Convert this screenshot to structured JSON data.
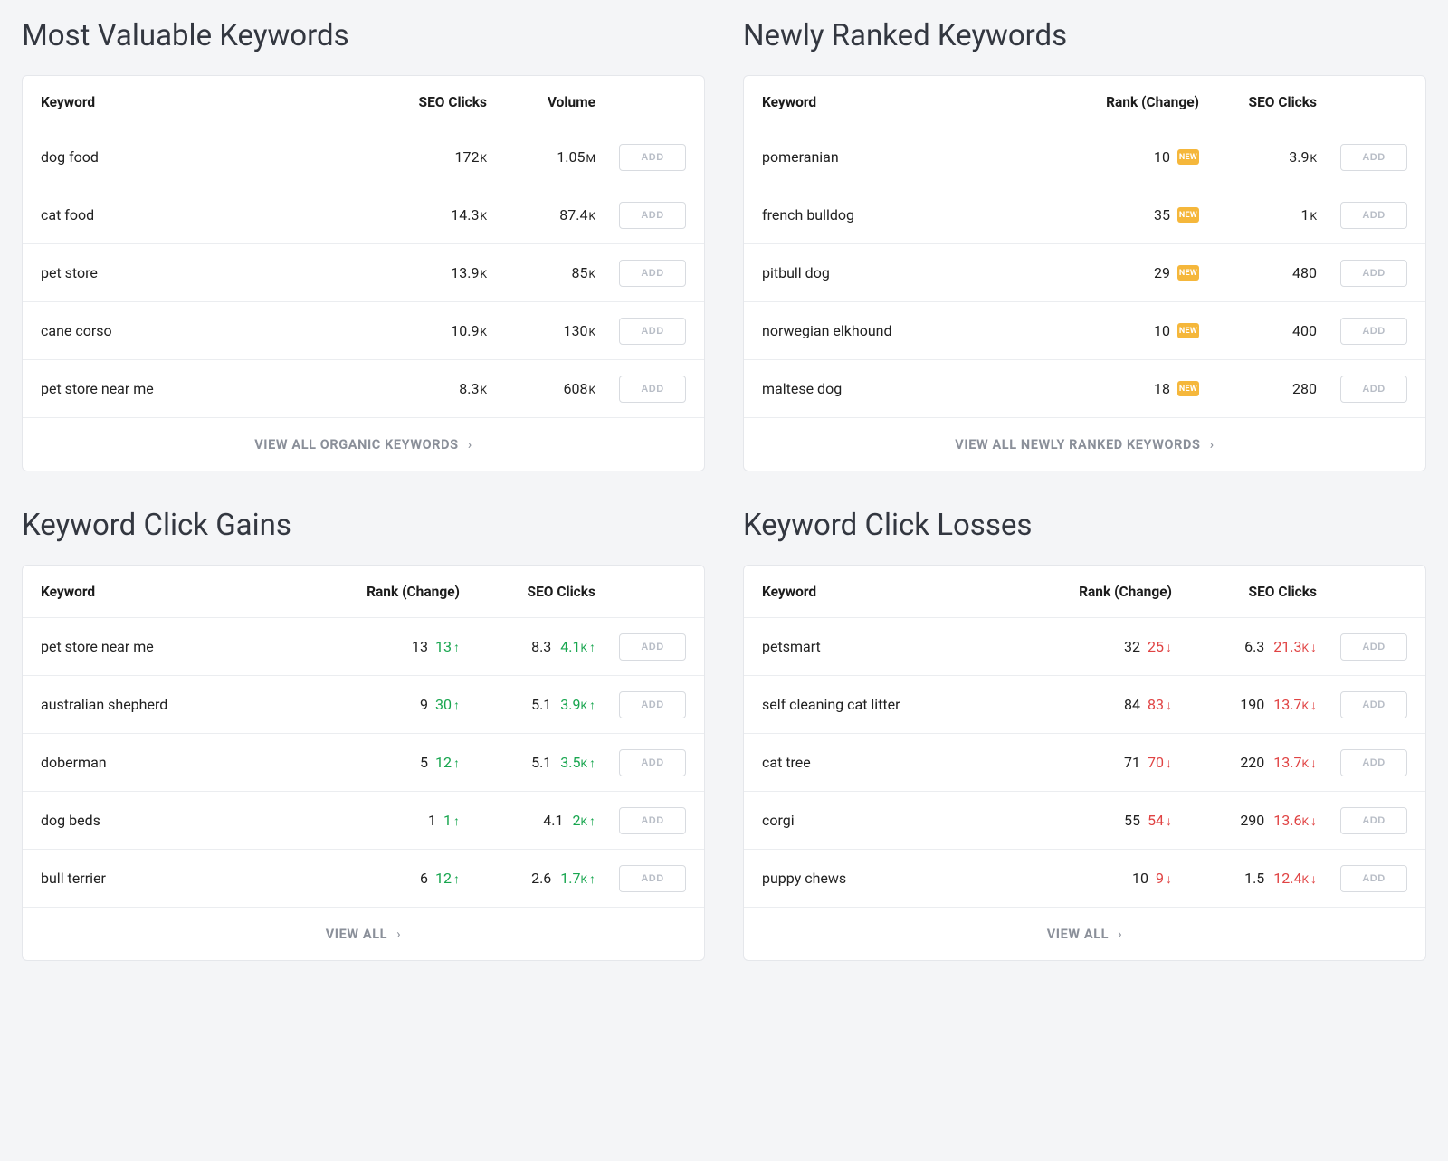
{
  "labels": {
    "add_button": "ADD",
    "new_badge": "NEW"
  },
  "colors": {
    "background": "#f4f5f7",
    "card_bg": "#ffffff",
    "border": "#e5e7eb",
    "row_border": "#ebedf0",
    "text_primary": "#1a1a1a",
    "text_muted": "#8a8f99",
    "btn_border": "#d8dbe0",
    "btn_text": "#b9bec7",
    "badge_bg": "#f5b73b",
    "up": "#18a64f",
    "down": "#e04343"
  },
  "panels": {
    "valuable": {
      "title": "Most Valuable Keywords",
      "columns": [
        "Keyword",
        "SEO Clicks",
        "Volume"
      ],
      "footer": "VIEW ALL ORGANIC KEYWORDS",
      "rows": [
        {
          "keyword": "dog food",
          "clicks": "172",
          "clicks_suffix": "K",
          "volume": "1.05",
          "volume_suffix": "M"
        },
        {
          "keyword": "cat food",
          "clicks": "14.3",
          "clicks_suffix": "K",
          "volume": "87.4",
          "volume_suffix": "K"
        },
        {
          "keyword": "pet store",
          "clicks": "13.9",
          "clicks_suffix": "K",
          "volume": "85",
          "volume_suffix": "K"
        },
        {
          "keyword": "cane corso",
          "clicks": "10.9",
          "clicks_suffix": "K",
          "volume": "130",
          "volume_suffix": "K"
        },
        {
          "keyword": "pet store near me",
          "clicks": "8.3",
          "clicks_suffix": "K",
          "volume": "608",
          "volume_suffix": "K"
        }
      ]
    },
    "newly": {
      "title": "Newly Ranked Keywords",
      "columns": [
        "Keyword",
        "Rank (Change)",
        "SEO Clicks"
      ],
      "footer": "VIEW ALL NEWLY RANKED KEYWORDS",
      "rows": [
        {
          "keyword": "pomeranian",
          "rank": "10",
          "clicks": "3.9",
          "clicks_suffix": "K"
        },
        {
          "keyword": "french bulldog",
          "rank": "35",
          "clicks": "1",
          "clicks_suffix": "K"
        },
        {
          "keyword": "pitbull dog",
          "rank": "29",
          "clicks": "480",
          "clicks_suffix": ""
        },
        {
          "keyword": "norwegian elkhound",
          "rank": "10",
          "clicks": "400",
          "clicks_suffix": ""
        },
        {
          "keyword": "maltese dog",
          "rank": "18",
          "clicks": "280",
          "clicks_suffix": ""
        }
      ]
    },
    "gains": {
      "title": "Keyword Click Gains",
      "columns": [
        "Keyword",
        "Rank (Change)",
        "SEO Clicks"
      ],
      "footer": "VIEW ALL",
      "rows": [
        {
          "keyword": "pet store near me",
          "rank": "13",
          "change": "13",
          "clicks": "8.3",
          "delta": "4.1",
          "delta_suffix": "K"
        },
        {
          "keyword": "australian shepherd",
          "rank": "9",
          "change": "30",
          "clicks": "5.1",
          "delta": "3.9",
          "delta_suffix": "K"
        },
        {
          "keyword": "doberman",
          "rank": "5",
          "change": "12",
          "clicks": "5.1",
          "delta": "3.5",
          "delta_suffix": "K"
        },
        {
          "keyword": "dog beds",
          "rank": "1",
          "change": "1",
          "clicks": "4.1",
          "delta": "2",
          "delta_suffix": "K"
        },
        {
          "keyword": "bull terrier",
          "rank": "6",
          "change": "12",
          "clicks": "2.6",
          "delta": "1.7",
          "delta_suffix": "K"
        }
      ]
    },
    "losses": {
      "title": "Keyword Click Losses",
      "columns": [
        "Keyword",
        "Rank (Change)",
        "SEO Clicks"
      ],
      "footer": "VIEW ALL",
      "rows": [
        {
          "keyword": "petsmart",
          "rank": "32",
          "change": "25",
          "clicks": "6.3",
          "delta": "21.3",
          "delta_suffix": "K"
        },
        {
          "keyword": "self cleaning cat litter",
          "rank": "84",
          "change": "83",
          "clicks": "190",
          "delta": "13.7",
          "delta_suffix": "K"
        },
        {
          "keyword": "cat tree",
          "rank": "71",
          "change": "70",
          "clicks": "220",
          "delta": "13.7",
          "delta_suffix": "K"
        },
        {
          "keyword": "corgi",
          "rank": "55",
          "change": "54",
          "clicks": "290",
          "delta": "13.6",
          "delta_suffix": "K"
        },
        {
          "keyword": "puppy chews",
          "rank": "10",
          "change": "9",
          "clicks": "1.5",
          "delta": "12.4",
          "delta_suffix": "K"
        }
      ]
    }
  }
}
